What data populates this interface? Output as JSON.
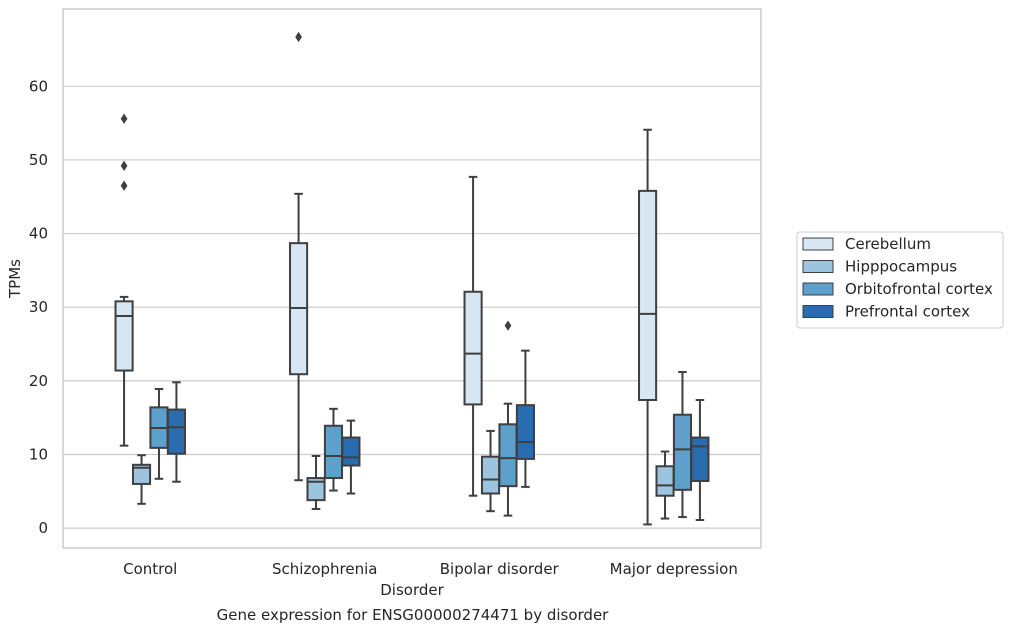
{
  "chart_data": {
    "type": "box",
    "caption": "Gene expression for ENSG00000274471 by disorder",
    "xlabel": "Disorder",
    "ylabel": "TPMs",
    "ylim": [
      -2.7,
      70.5
    ],
    "yticks": [
      0,
      10,
      20,
      30,
      40,
      50,
      60
    ],
    "grid": "horizontal",
    "legend_position": "right",
    "categories": [
      "Control",
      "Schizophrenia",
      "Bipolar disorder",
      "Major depression"
    ],
    "series": [
      {
        "name": "Cerebellum",
        "color": "#d6e6f3",
        "boxes": [
          {
            "whislo": 11.2,
            "q1": 21.4,
            "med": 28.8,
            "q3": 30.8,
            "whishi": 31.4,
            "fliers": [
              46.5,
              49.2,
              55.6
            ]
          },
          {
            "whislo": 6.5,
            "q1": 20.9,
            "med": 29.9,
            "q3": 38.7,
            "whishi": 45.4,
            "fliers": [
              66.7
            ]
          },
          {
            "whislo": 4.4,
            "q1": 16.8,
            "med": 23.7,
            "q3": 32.1,
            "whishi": 47.7,
            "fliers": []
          },
          {
            "whislo": 0.5,
            "q1": 17.4,
            "med": 29.1,
            "q3": 45.8,
            "whishi": 54.1,
            "fliers": []
          }
        ]
      },
      {
        "name": "Hipppocampus",
        "color": "#9cc4de",
        "boxes": [
          {
            "whislo": 3.3,
            "q1": 6.0,
            "med": 8.2,
            "q3": 8.6,
            "whishi": 9.9,
            "fliers": []
          },
          {
            "whislo": 2.6,
            "q1": 3.8,
            "med": 6.3,
            "q3": 6.8,
            "whishi": 9.8,
            "fliers": []
          },
          {
            "whislo": 2.3,
            "q1": 4.7,
            "med": 6.6,
            "q3": 9.7,
            "whishi": 13.2,
            "fliers": []
          },
          {
            "whislo": 1.3,
            "q1": 4.4,
            "med": 5.8,
            "q3": 8.4,
            "whishi": 10.4,
            "fliers": []
          }
        ]
      },
      {
        "name": "Orbitofrontal cortex",
        "color": "#5da0cb",
        "boxes": [
          {
            "whislo": 6.7,
            "q1": 10.9,
            "med": 13.6,
            "q3": 16.4,
            "whishi": 18.9,
            "fliers": []
          },
          {
            "whislo": 5.1,
            "q1": 6.8,
            "med": 9.8,
            "q3": 13.9,
            "whishi": 16.2,
            "fliers": []
          },
          {
            "whislo": 1.7,
            "q1": 5.7,
            "med": 9.5,
            "q3": 14.1,
            "whishi": 16.9,
            "fliers": [
              27.5
            ]
          },
          {
            "whislo": 1.5,
            "q1": 5.2,
            "med": 10.7,
            "q3": 15.4,
            "whishi": 21.2,
            "fliers": []
          }
        ]
      },
      {
        "name": "Prefrontal cortex",
        "color": "#2a6cb0",
        "boxes": [
          {
            "whislo": 6.3,
            "q1": 10.1,
            "med": 13.7,
            "q3": 16.1,
            "whishi": 19.8,
            "fliers": []
          },
          {
            "whislo": 4.7,
            "q1": 8.5,
            "med": 9.6,
            "q3": 12.3,
            "whishi": 14.6,
            "fliers": []
          },
          {
            "whislo": 5.6,
            "q1": 9.4,
            "med": 11.7,
            "q3": 16.7,
            "whishi": 24.1,
            "fliers": []
          },
          {
            "whislo": 1.1,
            "q1": 6.4,
            "med": 11.1,
            "q3": 12.3,
            "whishi": 17.4,
            "fliers": []
          }
        ]
      }
    ]
  }
}
